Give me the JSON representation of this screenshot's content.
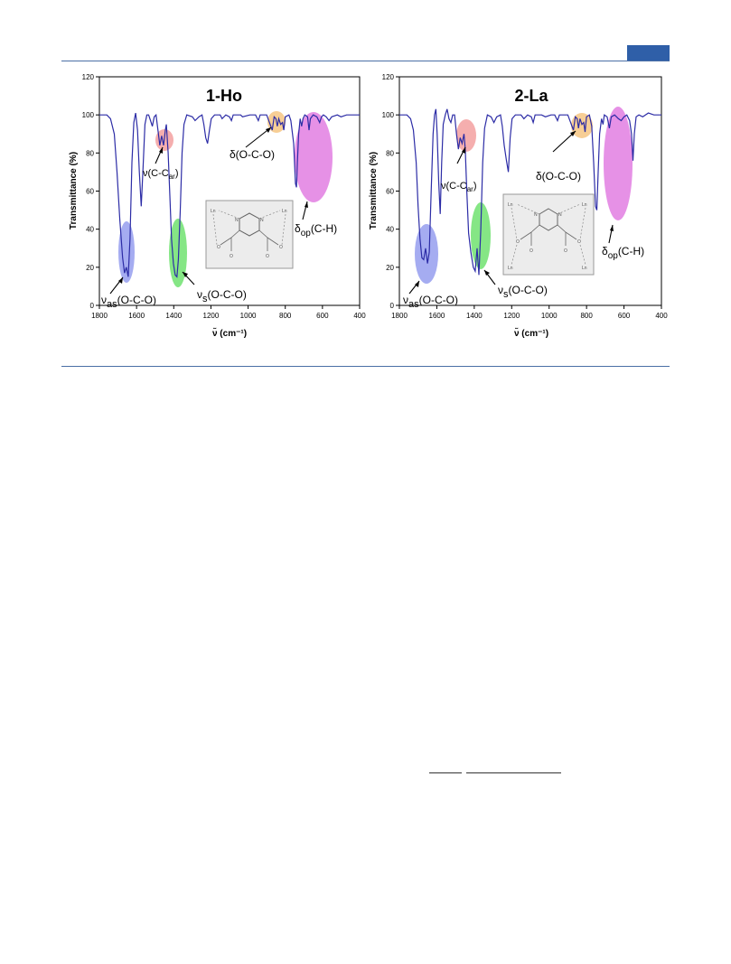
{
  "colors": {
    "rule": "#4a6fa5",
    "tab": "#2f5fa8",
    "spectrum": "#2c2ca6",
    "highlight_blue": "#8f97ee",
    "highlight_red": "#f3a0a0",
    "highlight_green": "#66e066",
    "highlight_orange": "#f6c98a",
    "highlight_magenta": "#e27ee2"
  },
  "chart_data": [
    {
      "type": "line",
      "title": "1-Ho",
      "xlabel": "ν̃ (cm⁻¹)",
      "ylabel": "Transmittance (%)",
      "xlim": [
        1800,
        400
      ],
      "ylim": [
        0,
        120
      ],
      "x_ticks": [
        "1800",
        "1600",
        "1400",
        "1200",
        "1000",
        "800",
        "600",
        "400"
      ],
      "y_ticks": [
        "0",
        "20",
        "40",
        "60",
        "80",
        "100",
        "120"
      ],
      "grid": false,
      "series": [
        {
          "points": [
            [
              1800,
              100
            ],
            [
              1760,
              100
            ],
            [
              1740,
              98
            ],
            [
              1720,
              90
            ],
            [
              1705,
              70
            ],
            [
              1690,
              45
            ],
            [
              1675,
              25
            ],
            [
              1665,
              17
            ],
            [
              1655,
              20
            ],
            [
              1645,
              15
            ],
            [
              1635,
              35
            ],
            [
              1625,
              75
            ],
            [
              1615,
              96
            ],
            [
              1605,
              101
            ],
            [
              1595,
              92
            ],
            [
              1585,
              70
            ],
            [
              1575,
              52
            ],
            [
              1565,
              72
            ],
            [
              1555,
              95
            ],
            [
              1545,
              100
            ],
            [
              1535,
              100
            ],
            [
              1525,
              97
            ],
            [
              1515,
              94
            ],
            [
              1505,
              99
            ],
            [
              1495,
              100
            ],
            [
              1485,
              92
            ],
            [
              1475,
              84
            ],
            [
              1465,
              89
            ],
            [
              1455,
              84
            ],
            [
              1445,
              92
            ],
            [
              1440,
              95
            ],
            [
              1430,
              80
            ],
            [
              1420,
              55
            ],
            [
              1412,
              35
            ],
            [
              1402,
              22
            ],
            [
              1392,
              16
            ],
            [
              1383,
              15
            ],
            [
              1375,
              24
            ],
            [
              1365,
              50
            ],
            [
              1355,
              80
            ],
            [
              1345,
              95
            ],
            [
              1330,
              100
            ],
            [
              1300,
              99
            ],
            [
              1285,
              97
            ],
            [
              1265,
              99
            ],
            [
              1248,
              100
            ],
            [
              1238,
              95
            ],
            [
              1228,
              88
            ],
            [
              1218,
              85
            ],
            [
              1208,
              92
            ],
            [
              1198,
              98
            ],
            [
              1180,
              100
            ],
            [
              1150,
              100
            ],
            [
              1140,
              98
            ],
            [
              1120,
              100
            ],
            [
              1100,
              99
            ],
            [
              1090,
              97
            ],
            [
              1080,
              100
            ],
            [
              1040,
              100
            ],
            [
              1030,
              99
            ],
            [
              990,
              100
            ],
            [
              960,
              100
            ],
            [
              945,
              97
            ],
            [
              935,
              100
            ],
            [
              900,
              100
            ],
            [
              885,
              96
            ],
            [
              870,
              92
            ],
            [
              860,
              99
            ],
            [
              850,
              98
            ],
            [
              843,
              94
            ],
            [
              835,
              98
            ],
            [
              825,
              95
            ],
            [
              815,
              96
            ],
            [
              808,
              92
            ],
            [
              800,
              99
            ],
            [
              780,
              100
            ],
            [
              770,
              97
            ],
            [
              755,
              85
            ],
            [
              745,
              64
            ],
            [
              740,
              62
            ],
            [
              735,
              75
            ],
            [
              728,
              90
            ],
            [
              720,
              98
            ],
            [
              712,
              94
            ],
            [
              705,
              98
            ],
            [
              695,
              100
            ],
            [
              680,
              99
            ],
            [
              672,
              92
            ],
            [
              665,
              98
            ],
            [
              650,
              100
            ],
            [
              630,
              99
            ],
            [
              615,
              96
            ],
            [
              605,
              99
            ],
            [
              595,
              100
            ],
            [
              580,
              99
            ],
            [
              565,
              97
            ],
            [
              550,
              99
            ],
            [
              520,
              100
            ],
            [
              500,
              99
            ],
            [
              470,
              100
            ],
            [
              440,
              100
            ],
            [
              400,
              100
            ]
          ]
        }
      ],
      "annotations": [
        "ν",
        "as",
        "(O-C-O)",
        "ν(C-C",
        "ar",
        ")",
        "ν",
        "s",
        "(O-C-O)",
        "δ(O-C-O)",
        "δ",
        "op",
        "(C-H)"
      ],
      "inset_labels": [
        "Ln",
        "N",
        "N",
        "Ln",
        "O",
        "O",
        "O",
        "O"
      ]
    },
    {
      "type": "line",
      "title": "2-La",
      "xlabel": "ν̃ (cm⁻¹)",
      "ylabel": "Transmittance (%)",
      "xlim": [
        1800,
        400
      ],
      "ylim": [
        0,
        120
      ],
      "x_ticks": [
        "1800",
        "1600",
        "1400",
        "1200",
        "1000",
        "800",
        "600",
        "400"
      ],
      "y_ticks": [
        "0",
        "20",
        "40",
        "60",
        "80",
        "100",
        "120"
      ],
      "grid": false,
      "series": [
        {
          "points": [
            [
              1800,
              100
            ],
            [
              1760,
              100
            ],
            [
              1740,
              98
            ],
            [
              1725,
              92
            ],
            [
              1710,
              75
            ],
            [
              1700,
              52
            ],
            [
              1690,
              35
            ],
            [
              1680,
              25
            ],
            [
              1670,
              24
            ],
            [
              1660,
              30
            ],
            [
              1650,
              22
            ],
            [
              1640,
              28
            ],
            [
              1630,
              60
            ],
            [
              1620,
              90
            ],
            [
              1612,
              100
            ],
            [
              1605,
              103
            ],
            [
              1598,
              90
            ],
            [
              1590,
              65
            ],
            [
              1582,
              48
            ],
            [
              1574,
              75
            ],
            [
              1566,
              95
            ],
            [
              1555,
              100
            ],
            [
              1545,
              103
            ],
            [
              1535,
              98
            ],
            [
              1525,
              96
            ],
            [
              1515,
              100
            ],
            [
              1505,
              100
            ],
            [
              1495,
              90
            ],
            [
              1485,
              82
            ],
            [
              1475,
              88
            ],
            [
              1465,
              85
            ],
            [
              1455,
              90
            ],
            [
              1448,
              82
            ],
            [
              1440,
              60
            ],
            [
              1430,
              38
            ],
            [
              1418,
              28
            ],
            [
              1405,
              20
            ],
            [
              1395,
              18
            ],
            [
              1385,
              30
            ],
            [
              1375,
              16
            ],
            [
              1365,
              40
            ],
            [
              1355,
              75
            ],
            [
              1345,
              93
            ],
            [
              1330,
              100
            ],
            [
              1310,
              99
            ],
            [
              1295,
              96
            ],
            [
              1280,
              99
            ],
            [
              1260,
              100
            ],
            [
              1250,
              94
            ],
            [
              1240,
              84
            ],
            [
              1228,
              76
            ],
            [
              1218,
              70
            ],
            [
              1208,
              88
            ],
            [
              1198,
              98
            ],
            [
              1180,
              100
            ],
            [
              1150,
              100
            ],
            [
              1135,
              98
            ],
            [
              1115,
              100
            ],
            [
              1095,
              99
            ],
            [
              1085,
              96
            ],
            [
              1075,
              100
            ],
            [
              1040,
              100
            ],
            [
              1020,
              99
            ],
            [
              990,
              100
            ],
            [
              970,
              100
            ],
            [
              955,
              97
            ],
            [
              945,
              100
            ],
            [
              900,
              100
            ],
            [
              885,
              96
            ],
            [
              870,
              92
            ],
            [
              860,
              99
            ],
            [
              850,
              98
            ],
            [
              843,
              93
            ],
            [
              835,
              98
            ],
            [
              825,
              95
            ],
            [
              815,
              96
            ],
            [
              808,
              91
            ],
            [
              800,
              99
            ],
            [
              785,
              100
            ],
            [
              772,
              94
            ],
            [
              762,
              75
            ],
            [
              752,
              52
            ],
            [
              745,
              50
            ],
            [
              738,
              70
            ],
            [
              730,
              90
            ],
            [
              720,
              98
            ],
            [
              712,
              95
            ],
            [
              705,
              100
            ],
            [
              690,
              99
            ],
            [
              678,
              93
            ],
            [
              668,
              99
            ],
            [
              650,
              100
            ],
            [
              630,
              98
            ],
            [
              615,
              97
            ],
            [
              600,
              99
            ],
            [
              585,
              100
            ],
            [
              570,
              97
            ],
            [
              560,
              90
            ],
            [
              552,
              76
            ],
            [
              545,
              90
            ],
            [
              535,
              99
            ],
            [
              520,
              100
            ],
            [
              500,
              99
            ],
            [
              470,
              101
            ],
            [
              440,
              100
            ],
            [
              400,
              100
            ]
          ]
        }
      ],
      "annotations": [
        "ν",
        "as",
        "(O-C-O)",
        "ν(C-C",
        "ar",
        ")",
        "ν",
        "s",
        "(O-C-O)",
        "δ(O-C-O)",
        "δ",
        "op",
        "(C-H)"
      ],
      "inset_labels": [
        "Ln",
        "N",
        "N",
        "Ln",
        "O",
        "O",
        "O",
        "O",
        "Ln",
        "Ln"
      ]
    }
  ]
}
